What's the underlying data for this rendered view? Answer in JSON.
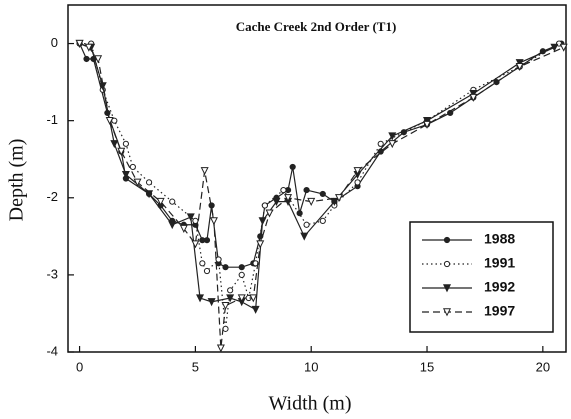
{
  "chart_data": {
    "type": "line",
    "title": "Cache Creek 2nd Order (T1)",
    "x_label": "Width (m)",
    "y_label": "Depth (m)",
    "xlim": [
      -0.5,
      21
    ],
    "ylim": [
      -4,
      0.5
    ],
    "xticks": [
      0,
      5,
      10,
      15,
      20
    ],
    "yticks": [
      0,
      -1,
      -2,
      -3,
      -4
    ],
    "legend": "lower right",
    "series": [
      {
        "name": "1988",
        "color": "#222222",
        "dash": "solid",
        "marker": "filled-circle",
        "x": [
          0,
          0.3,
          0.6,
          1.2,
          1.8,
          2.0,
          3.0,
          3.5,
          4.0,
          4.5,
          5.0,
          5.3,
          5.5,
          5.7,
          6.0,
          6.3,
          7.0,
          7.5,
          7.8,
          8.0,
          8.5,
          9.0,
          9.2,
          9.5,
          9.8,
          10.5,
          11.0,
          12.0,
          13.0,
          14.0,
          15.0,
          16.0,
          17.0,
          18.0,
          19.0,
          20.0,
          20.8
        ],
        "values": [
          0,
          -0.2,
          -0.2,
          -0.9,
          -1.4,
          -1.75,
          -1.95,
          -2.1,
          -2.3,
          -2.35,
          -2.35,
          -2.55,
          -2.55,
          -2.1,
          -2.85,
          -2.9,
          -2.9,
          -2.85,
          -2.5,
          -2.1,
          -2.0,
          -1.9,
          -1.6,
          -2.2,
          -1.9,
          -1.95,
          -2.05,
          -1.85,
          -1.4,
          -1.15,
          -1.05,
          -0.9,
          -0.7,
          -0.5,
          -0.3,
          -0.1,
          0
        ]
      },
      {
        "name": "1991",
        "color": "#222222",
        "dash": "dotted",
        "marker": "open-circle",
        "x": [
          0,
          0.5,
          1.0,
          1.5,
          2.0,
          2.3,
          3.0,
          4.0,
          5.0,
          5.3,
          5.5,
          6.0,
          6.3,
          6.5,
          7.0,
          7.3,
          7.6,
          8.0,
          8.8,
          9.8,
          10.5,
          11.0,
          12.0,
          13.0,
          15.0,
          17.0,
          19.0,
          20.7
        ],
        "values": [
          0,
          0,
          -0.6,
          -1.0,
          -1.3,
          -1.6,
          -1.8,
          -2.05,
          -2.3,
          -2.85,
          -2.95,
          -2.8,
          -3.7,
          -3.2,
          -3.0,
          -3.3,
          -2.85,
          -2.1,
          -1.9,
          -2.35,
          -2.3,
          -2.1,
          -1.8,
          -1.3,
          -1.0,
          -0.6,
          -0.3,
          0
        ]
      },
      {
        "name": "1992",
        "color": "#222222",
        "dash": "solid",
        "marker": "filled-triangle",
        "x": [
          0,
          0.5,
          1.0,
          1.5,
          2.0,
          3.0,
          4.0,
          4.8,
          5.2,
          5.7,
          6.5,
          7.0,
          7.6,
          7.9,
          8.5,
          9.0,
          9.7,
          11.0,
          12.0,
          13.5,
          15.0,
          17.0,
          19.0,
          20.5
        ],
        "values": [
          0,
          -0.05,
          -0.55,
          -1.3,
          -1.7,
          -1.95,
          -2.35,
          -2.25,
          -3.3,
          -3.35,
          -3.3,
          -3.35,
          -3.45,
          -2.3,
          -2.05,
          -2.05,
          -2.5,
          -2.05,
          -1.7,
          -1.2,
          -1.0,
          -0.65,
          -0.25,
          -0.05
        ]
      },
      {
        "name": "1997",
        "color": "#222222",
        "dash": "dashed",
        "marker": "open-triangle",
        "x": [
          0,
          0.4,
          0.8,
          1.3,
          1.8,
          2.5,
          3.5,
          4.5,
          5.0,
          5.4,
          5.8,
          6.1,
          6.3,
          7.0,
          7.5,
          7.8,
          8.2,
          9.0,
          10.0,
          11.2,
          12.0,
          13.5,
          15.0,
          17.0,
          19.0,
          20.9
        ],
        "values": [
          0,
          -0.05,
          -0.2,
          -1.0,
          -1.4,
          -1.8,
          -2.05,
          -2.4,
          -2.6,
          -1.65,
          -2.3,
          -3.95,
          -3.4,
          -3.3,
          -3.3,
          -2.6,
          -2.2,
          -2.0,
          -2.05,
          -2.0,
          -1.65,
          -1.3,
          -1.05,
          -0.7,
          -0.3,
          -0.05
        ]
      }
    ]
  }
}
